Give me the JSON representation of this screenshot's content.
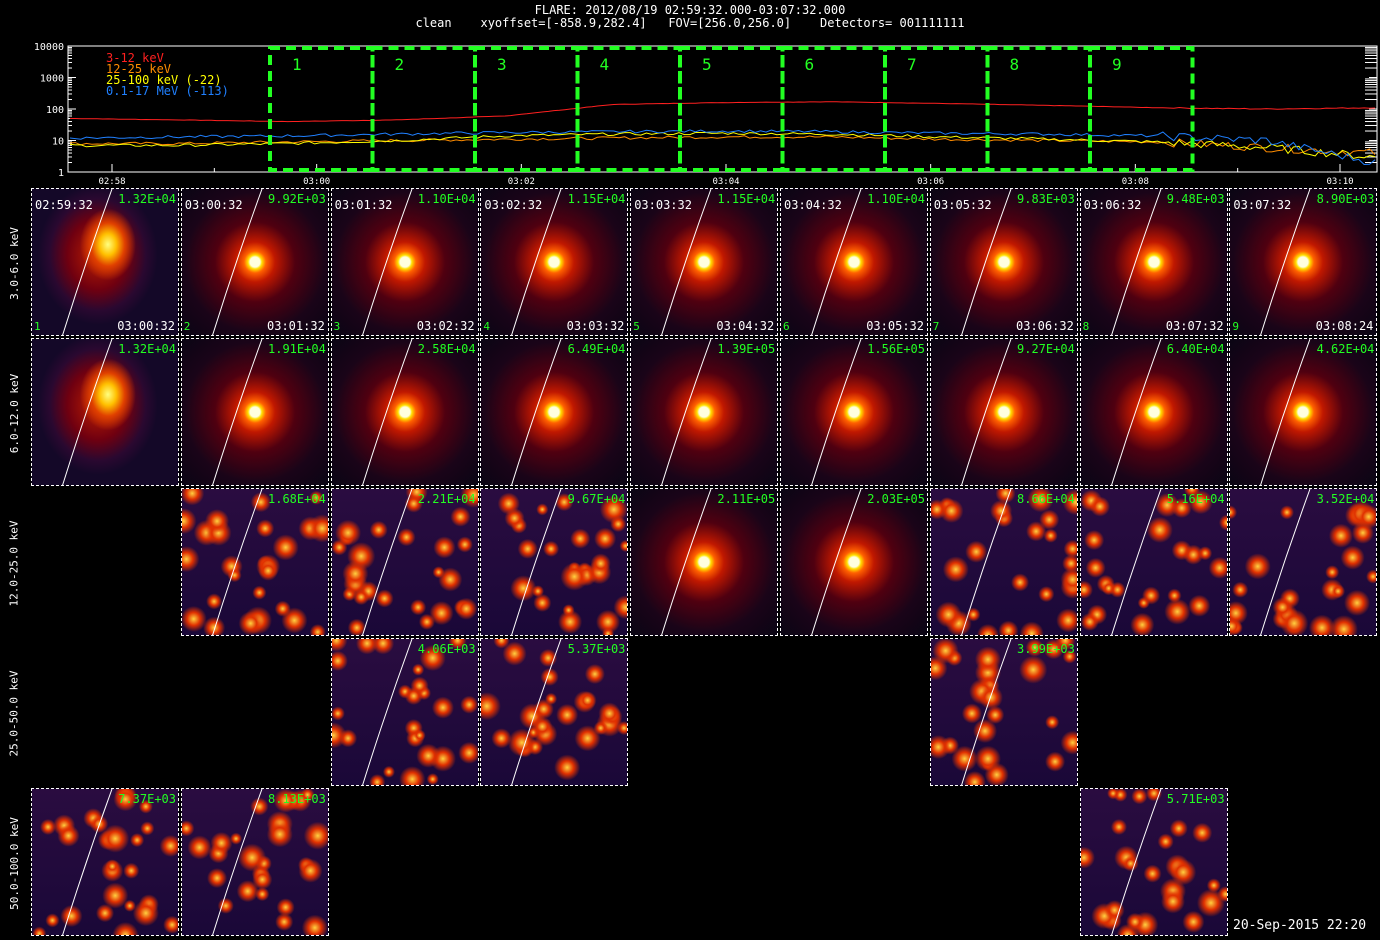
{
  "header": {
    "title": "FLARE: 2012/08/19 02:59:32.000-03:07:32.000",
    "subtitle": "clean    xyoffset=[-858.9,282.4]   FOV=[256.0,256.0]    Detectors= 001111111"
  },
  "lightcurve": {
    "y_ticks": [
      "10000",
      "1000",
      "100",
      "10",
      "1"
    ],
    "x_ticks": [
      "02:58",
      "03:00",
      "03:02",
      "03:04",
      "03:06",
      "03:08",
      "03:10"
    ],
    "legend": [
      {
        "label": "3-12 keV",
        "color": "#ff2020"
      },
      {
        "label": "12-25 keV",
        "color": "#ff8c00"
      },
      {
        "label": "25-100 keV (-22)",
        "color": "#ffff00"
      },
      {
        "label": "0.1-17 MeV (-113)",
        "color": "#2080ff"
      }
    ],
    "intervals": [
      "1",
      "2",
      "3",
      "4",
      "5",
      "6",
      "7",
      "8",
      "9"
    ]
  },
  "chart_data": {
    "type": "line",
    "yscale": "log",
    "ylim": [
      1,
      10000
    ],
    "x": [
      "02:58",
      "02:59",
      "03:00",
      "03:01",
      "03:02",
      "03:03",
      "03:04",
      "03:05",
      "03:06",
      "03:07",
      "03:08",
      "03:09",
      "03:10"
    ],
    "series": [
      {
        "name": "3-12 keV",
        "values": [
          50,
          45,
          40,
          45,
          60,
          140,
          160,
          170,
          150,
          130,
          110,
          100,
          110
        ]
      },
      {
        "name": "12-25 keV",
        "values": [
          8,
          8,
          9,
          10,
          11,
          12,
          13,
          13,
          11,
          10,
          9,
          6,
          4
        ]
      },
      {
        "name": "25-100 keV (-22)",
        "values": [
          7,
          7,
          8,
          10,
          14,
          16,
          17,
          16,
          13,
          11,
          9,
          6,
          3
        ]
      },
      {
        "name": "0.1-17 MeV (-113)",
        "values": [
          12,
          13,
          14,
          16,
          18,
          19,
          20,
          19,
          17,
          16,
          14,
          10,
          2
        ]
      }
    ]
  },
  "mosaic": {
    "rows": [
      "3.0-6.0 keV",
      "6.0-12.0 keV",
      "12.0-25.0 keV",
      "25.0-50.0 keV",
      "50.0-100.0 keV"
    ],
    "start_times": [
      "02:59:32",
      "03:00:32",
      "03:01:32",
      "03:02:32",
      "03:03:32",
      "03:04:32",
      "03:05:32",
      "03:06:32",
      "03:07:32"
    ],
    "end_times": [
      "03:00:32",
      "03:01:32",
      "03:02:32",
      "03:03:32",
      "03:04:32",
      "03:05:32",
      "03:06:32",
      "03:07:32",
      "03:08:24"
    ],
    "numbers": [
      "1",
      "2",
      "3",
      "4",
      "5",
      "6",
      "7",
      "8",
      "9"
    ],
    "peaks": [
      [
        "1.32E+04",
        "9.92E+03",
        "1.10E+04",
        "1.15E+04",
        "1.15E+04",
        "1.10E+04",
        "9.83E+03",
        "9.48E+03",
        "8.90E+03"
      ],
      [
        "1.32E+04",
        "1.91E+04",
        "2.58E+04",
        "6.49E+04",
        "1.39E+05",
        "1.56E+05",
        "9.27E+04",
        "6.40E+04",
        "4.62E+04"
      ],
      [
        "",
        "1.68E+04",
        "2.21E+04",
        "9.67E+04",
        "2.11E+05",
        "2.03E+05",
        "8.66E+04",
        "5.16E+04",
        "3.52E+04"
      ],
      [
        "",
        "",
        "4.06E+03",
        "5.37E+03",
        "",
        "",
        "3.99E+03",
        "",
        ""
      ],
      [
        "7.37E+03",
        "8.13E+03",
        "",
        "",
        "",
        "",
        "",
        "5.71E+03",
        ""
      ]
    ]
  },
  "footer": {
    "timestamp": "20-Sep-2015 22:20"
  }
}
